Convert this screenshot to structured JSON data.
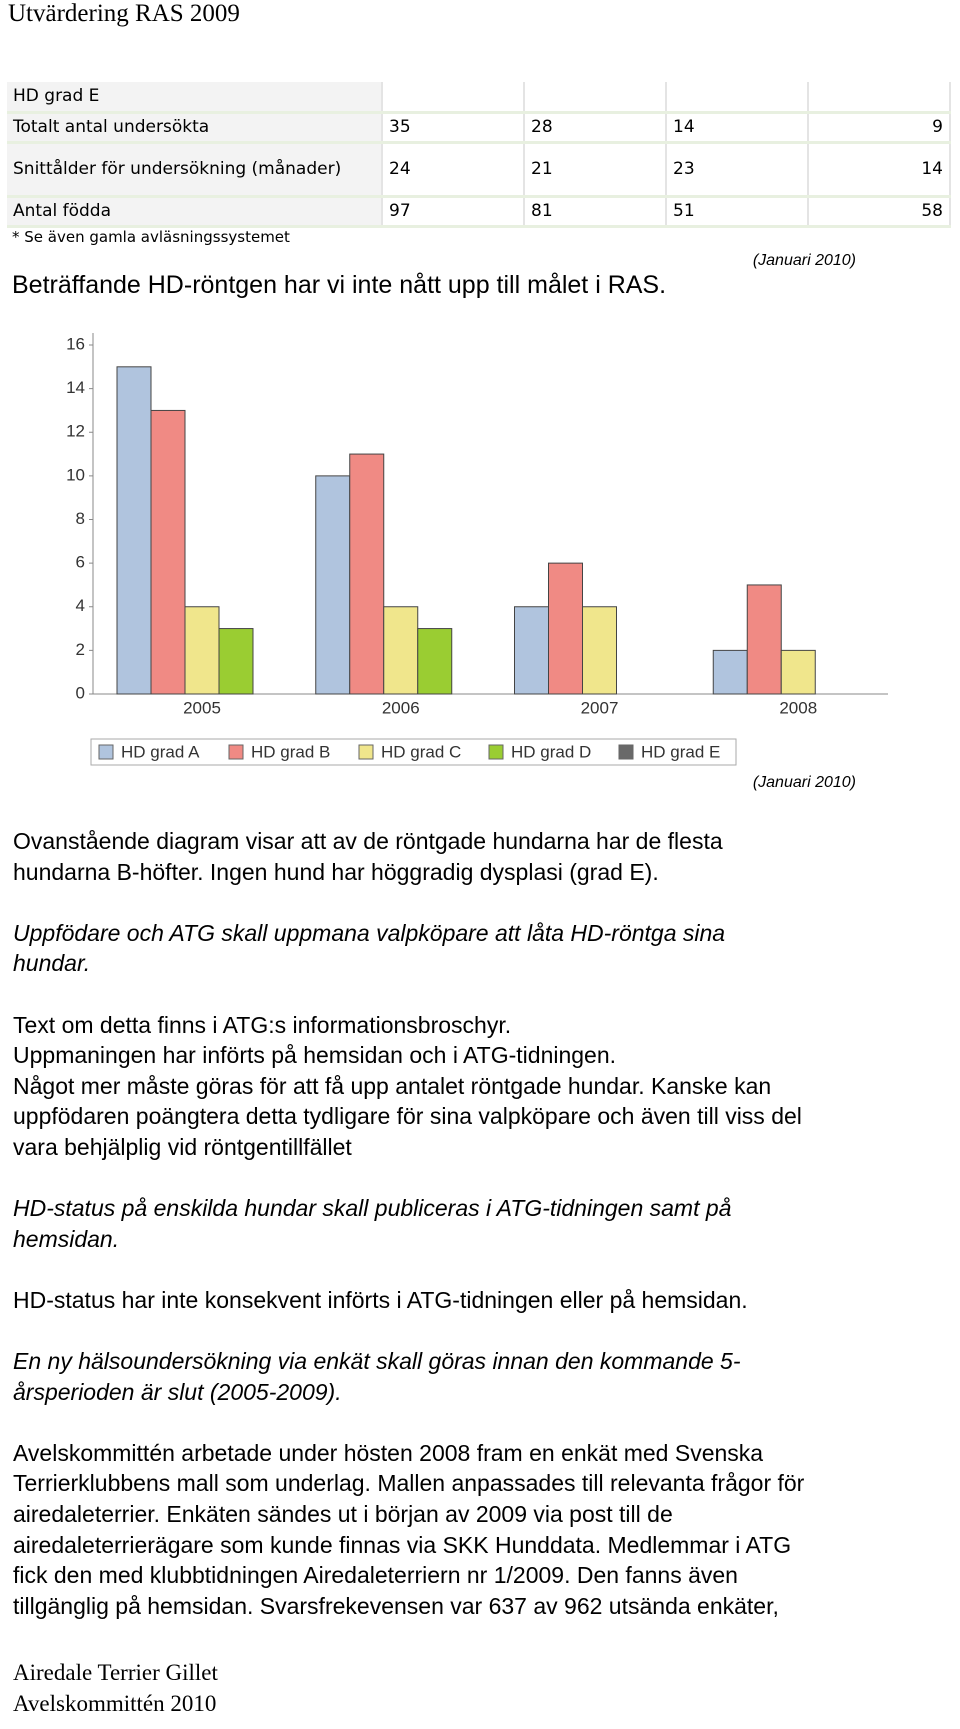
{
  "header": {
    "title": "Utvärdering RAS 2009"
  },
  "table": {
    "rows": [
      [
        "HD grad E"
      ],
      [
        "Totalt antal undersökta",
        35,
        28,
        14,
        9
      ],
      [
        "Snittålder för undersökning (månader)",
        24,
        21,
        23,
        14
      ],
      [
        "Antal födda",
        97,
        81,
        51,
        58
      ]
    ]
  },
  "note": "* Se även gamla avläsningssystemet",
  "date_1": "(Januari 2010)",
  "summary": "Beträffande HD-röntgen har vi inte nått upp till målet i RAS.",
  "chart_data": {
    "type": "bar",
    "categories": [
      "2005",
      "2006",
      "2007",
      "2008"
    ],
    "series": [
      {
        "name": "HD grad A",
        "color": "#b0c4de",
        "values": [
          15,
          10,
          4,
          2
        ]
      },
      {
        "name": "HD grad B",
        "color": "#f08a84",
        "values": [
          13,
          11,
          6,
          5
        ]
      },
      {
        "name": "HD grad C",
        "color": "#f0e68c",
        "values": [
          4,
          4,
          4,
          2
        ]
      },
      {
        "name": "HD grad D",
        "color": "#9acd32",
        "values": [
          3,
          3,
          0,
          0
        ]
      },
      {
        "name": "HD grad E",
        "color": "#696969",
        "values": [
          0,
          0,
          0,
          0
        ]
      }
    ],
    "ylim": [
      0,
      16
    ],
    "yticks": [
      0,
      2,
      4,
      6,
      8,
      10,
      12,
      14,
      16
    ],
    "grid": false,
    "legend": "bottom"
  },
  "date_2": "(Januari 2010)",
  "paragraphs": [
    {
      "italic": false,
      "lines": [
        "Ovanstående diagram visar att av de röntgade hundarna har de flesta",
        "hundarna B-höfter. Ingen hund har höggradig dysplasi (grad E)."
      ]
    },
    {
      "italic": true,
      "lines": [
        "Uppfödare och ATG skall uppmana valpköpare att låta HD-röntga sina",
        "hundar."
      ]
    },
    {
      "italic": false,
      "lines": [
        "Text om detta finns i ATG:s informationsbroschyr.",
        "Uppmaningen har införts på hemsidan och i ATG-tidningen.",
        "Något mer måste göras för att få upp antalet röntgade hundar. Kanske kan",
        "uppfödaren poängtera detta tydligare för sina valpköpare och även till viss del",
        "vara behjälplig vid röntgentillfället"
      ]
    },
    {
      "italic": true,
      "lines": [
        "HD-status på enskilda hundar skall publiceras i ATG-tidningen samt på",
        "hemsidan."
      ]
    },
    {
      "italic": false,
      "lines": [
        "HD-status har inte konsekvent införts i ATG-tidningen eller på hemsidan."
      ]
    },
    {
      "italic": true,
      "lines": [
        "En ny hälsoundersökning via enkät skall göras innan den kommande 5-",
        "årsperioden är slut (2005-2009)."
      ]
    },
    {
      "italic": false,
      "lines": [
        "Avelskommittén arbetade under hösten 2008 fram en enkät med Svenska",
        "Terrierklubbens mall som underlag. Mallen anpassades till relevanta frågor för",
        "airedaleterrier. Enkäten sändes ut i början av 2009 via post till de",
        "airedaleterrierägare som kunde finnas via SKK Hunddata. Medlemmar i ATG",
        "fick den med klubbtidningen Airedaleterriern nr 1/2009. Den fanns även",
        "tillgänglig på hemsidan. Svarsfrekevensen var 637 av 962 utsända enkäter,"
      ]
    }
  ],
  "footer": {
    "lines": [
      "Airedale Terrier Gillet",
      "Avelskommittén 2010"
    ]
  }
}
